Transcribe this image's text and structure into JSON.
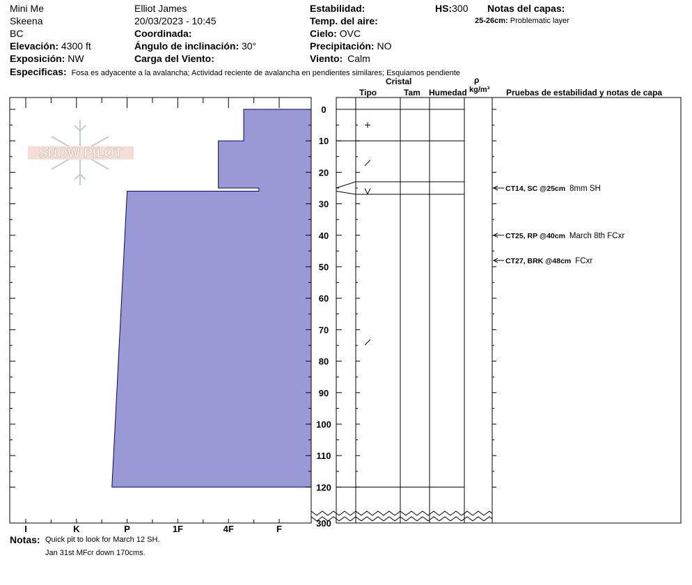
{
  "header": {
    "location": "Mini Me",
    "range": "Skeena",
    "state": "BC",
    "elevation_label": "Elevación:",
    "elevation_value": "4300 ft",
    "aspect_label": "Exposición:",
    "aspect_value": "NW",
    "observer": "Elliot James",
    "datetime": "20/03/2023 - 10:45",
    "coord_label": "Coordinada:",
    "slope_label": "Ángulo de inclinación:",
    "slope_value": "30°",
    "wind_load_label": "Carga del Viento:",
    "stability_label": "Estabilidad:",
    "air_temp_label": "Temp. del aire:",
    "sky_label": "Cielo:",
    "sky_value": "OVC",
    "precip_label": "Precipitación:",
    "precip_value": "NO",
    "wind_label": "Viento:",
    "wind_value": "Calm",
    "hs_label": "HS:",
    "hs_value": "300",
    "layer_notes_label": "Notas del capas:",
    "layer_note_range": "25-26cm:",
    "layer_note_text": "Problematic layer",
    "specifics_label": "Especificas:",
    "specifics_text": "Fosa es adyacente a la avalancha; Actividad reciente de avalancha en pendientes similares; Esquiamos pendiente"
  },
  "logo": {
    "text": "SNOW PILOT"
  },
  "columns": {
    "crystal": "Cristal",
    "type": "Tipo",
    "size": "Tam",
    "moisture": "Humedad",
    "rho": "ρ",
    "density_unit": "kg/m³",
    "tests": "Pruebas de estabilidad y notas de capa"
  },
  "hardness_axis": [
    "I",
    "K",
    "P",
    "1F",
    "4F",
    "F"
  ],
  "depth_axis": {
    "labels": [
      "0",
      "10",
      "20",
      "30",
      "40",
      "50",
      "60",
      "70",
      "80",
      "90",
      "100",
      "110",
      "120"
    ],
    "bottom_label": "300",
    "max_shown": 120
  },
  "chart_data": {
    "type": "area",
    "title": "",
    "xlabel": "",
    "ylabel": "",
    "x_categories": [
      "I",
      "K",
      "P",
      "1F",
      "4F",
      "F"
    ],
    "y_range": [
      0,
      120
    ],
    "hardness_profile": [
      {
        "top": 0,
        "bottom": 10,
        "hardness": "F",
        "hardness_index_top": 5.3,
        "hardness_index_bottom": 5.3
      },
      {
        "top": 10,
        "bottom": 25,
        "hardness": "4F+",
        "hardness_index_top": 4.8,
        "hardness_index_bottom": 4.8
      },
      {
        "top": 25,
        "bottom": 26,
        "hardness": "F+",
        "hardness_index_top": 5.6,
        "hardness_index_bottom": 5.6
      },
      {
        "top": 26,
        "bottom": 120,
        "hardness": "P",
        "hardness_index_top": 3.0,
        "hardness_index_bottom": 2.7
      }
    ],
    "fill_color": "#9999D6",
    "stroke_color": "#000080"
  },
  "layer_boundaries": [
    0,
    10,
    23,
    27,
    120
  ],
  "crystal_symbols": [
    {
      "depth": 5,
      "symbol": "+"
    },
    {
      "depth": 17,
      "symbol": "/"
    },
    {
      "depth": 26,
      "symbol": "V"
    },
    {
      "depth": 74,
      "symbol": "/"
    }
  ],
  "tests": [
    {
      "depth": 25,
      "code": "CT14, SC @25cm",
      "note": "8mm SH"
    },
    {
      "depth": 40,
      "code": "CT25, RP @40cm",
      "note": "March 8th FCxr"
    },
    {
      "depth": 48,
      "code": "CT27, BRK @48cm",
      "note": "FCxr"
    }
  ],
  "notes": {
    "label": "Notas:",
    "line1": "Quick pit to look for March 12 SH.",
    "line2": "Jan 31st MFcr down 170cms."
  }
}
